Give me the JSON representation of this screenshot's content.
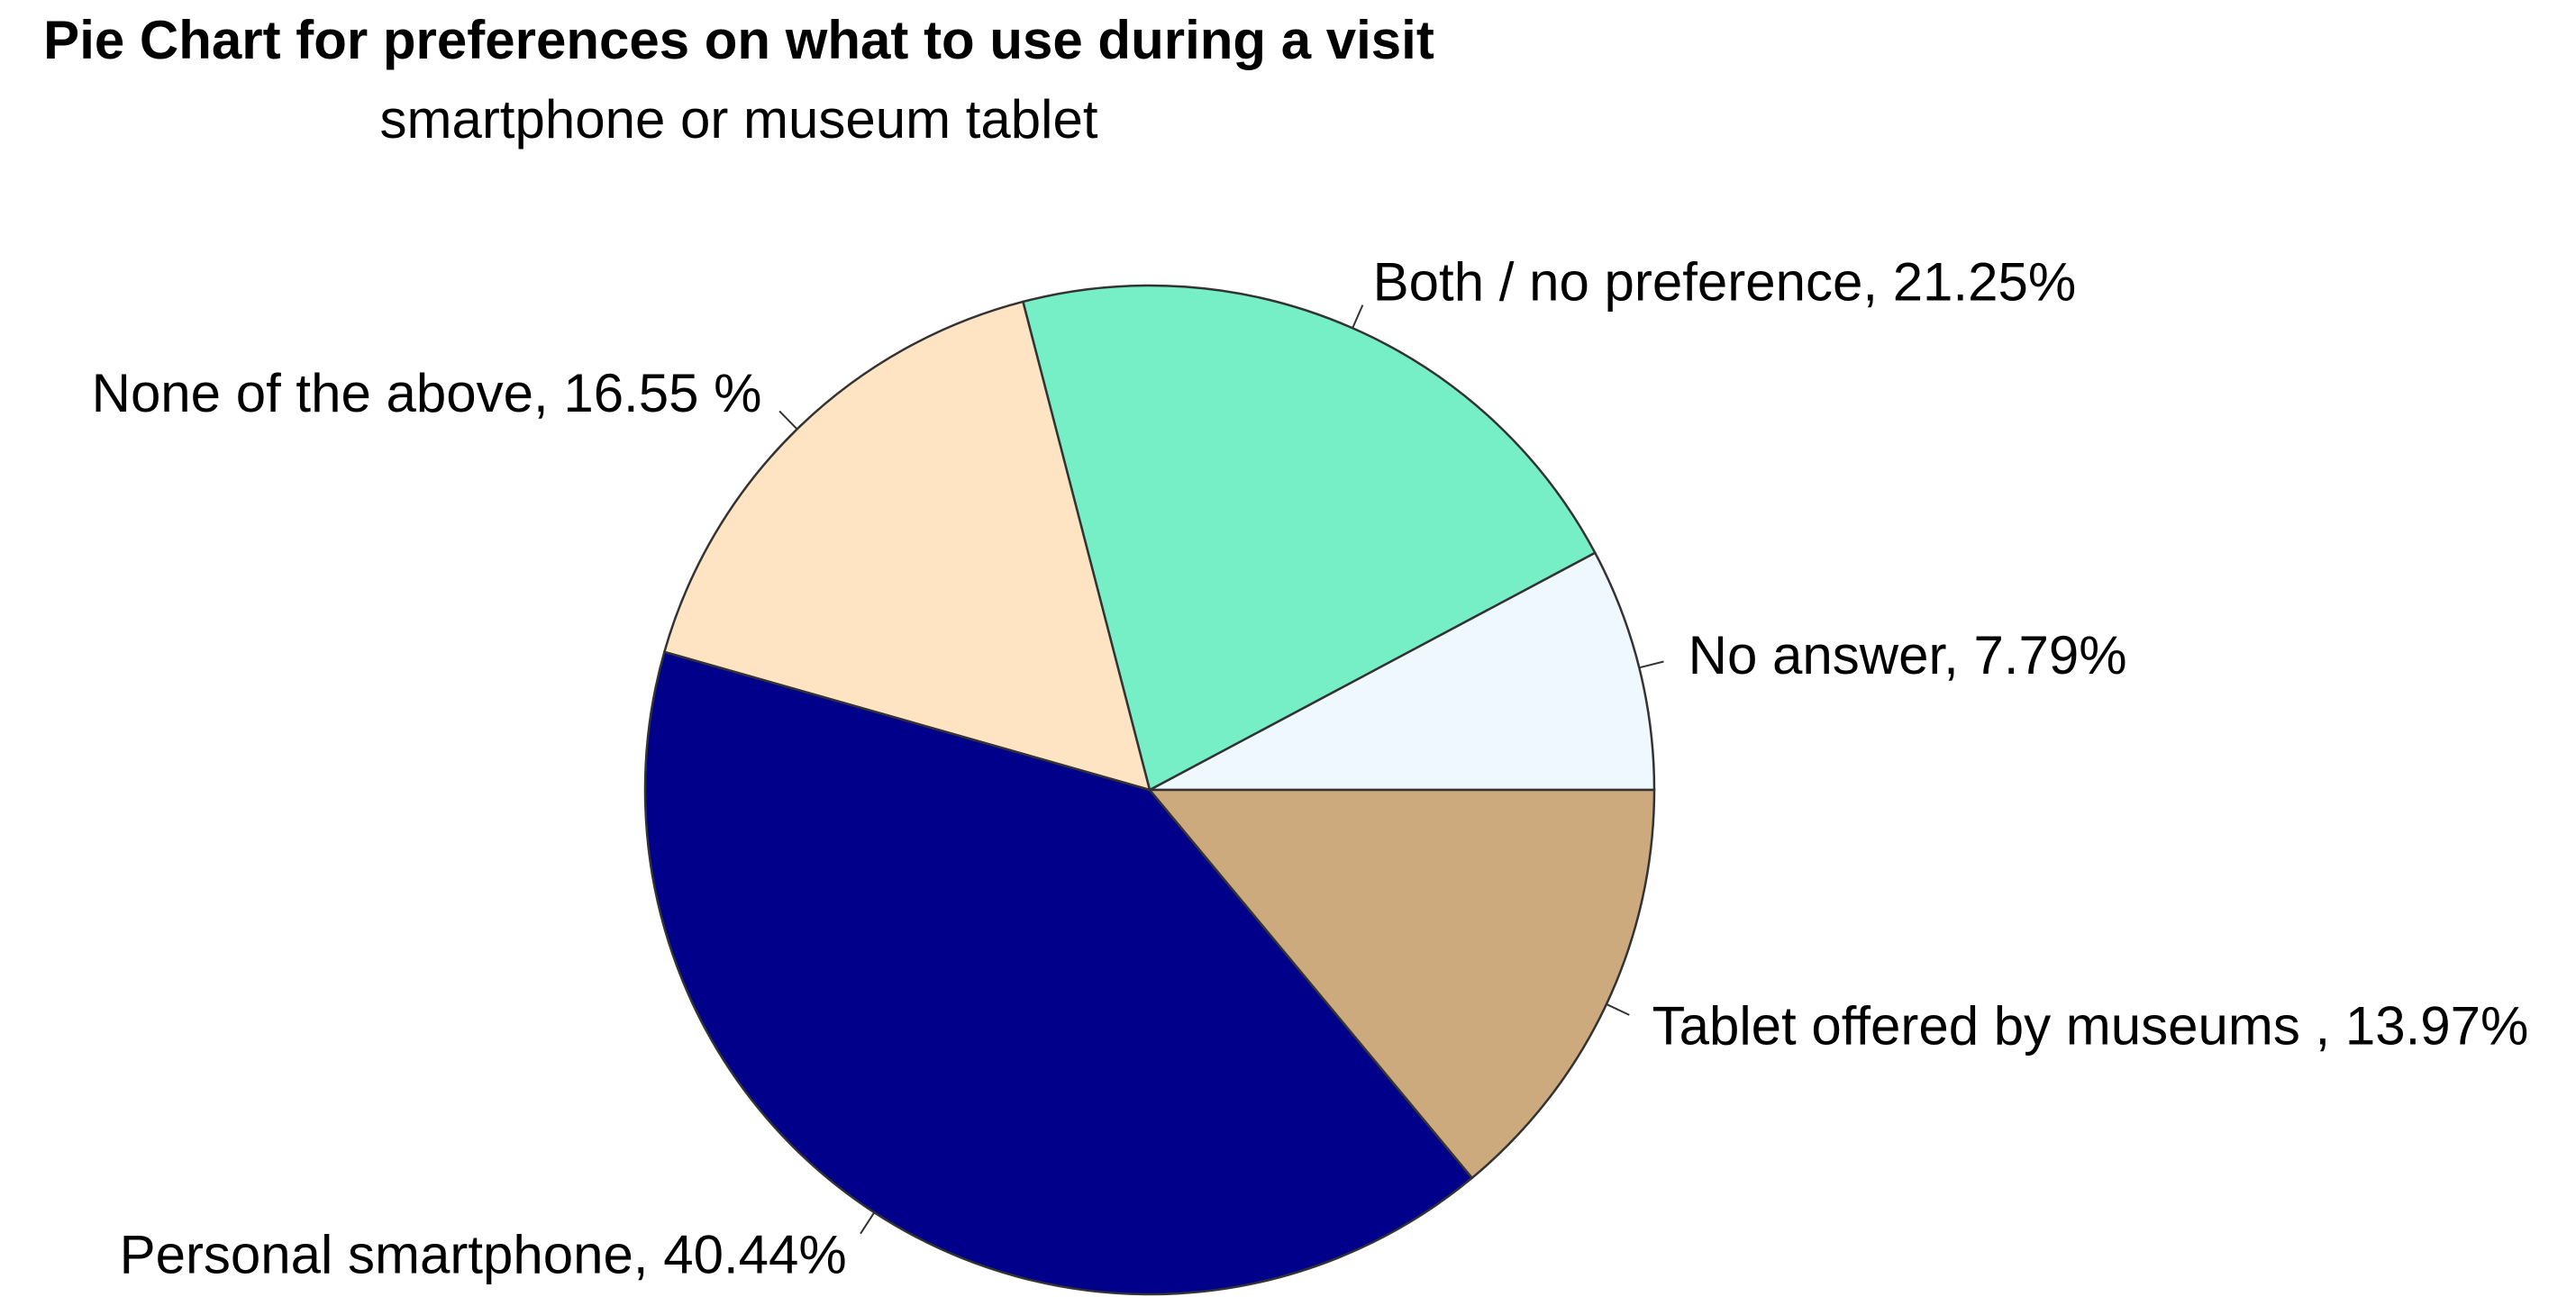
{
  "chart_data": {
    "type": "pie",
    "title": "Pie Chart for preferences on what to use during a visit",
    "subtitle": "smartphone or museum tablet",
    "start_angle_deg": 0,
    "direction": "counterclockwise",
    "slices": [
      {
        "value": 7.79,
        "label": "No answer, 7.79%",
        "color": "#F0F8FF"
      },
      {
        "value": 21.25,
        "label": "Both / no preference, 21.25%",
        "color": "#76EEC6"
      },
      {
        "value": 16.55,
        "label": "None of the above, 16.55 %",
        "color": "#FFE4C4"
      },
      {
        "value": 40.44,
        "label": "Personal smartphone, 40.44%",
        "color": "#00008B"
      },
      {
        "value": 13.97,
        "label": "Tablet offered by museums , 13.97%",
        "color": "#CDAA7D"
      }
    ],
    "border_color": "#333333",
    "legend": "none"
  }
}
